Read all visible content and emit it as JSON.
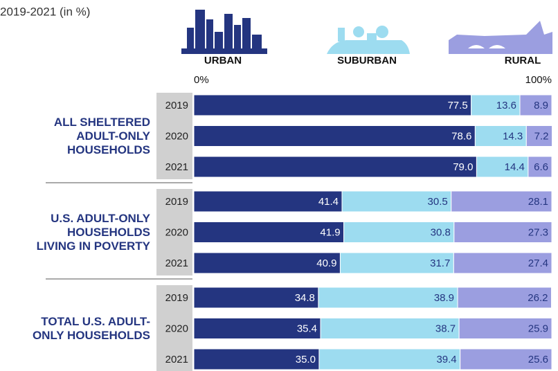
{
  "chart_data": {
    "type": "stacked-bar",
    "title": "2019-2021 (in %)",
    "xlim": [
      0,
      100
    ],
    "xticks": [
      {
        "value": 0,
        "label": "0%"
      },
      {
        "value": 100,
        "label": "100%"
      }
    ],
    "groups": [
      {
        "label": "ALL SHELTERED ADULT-ONLY HOUSEHOLDS",
        "categories": [
          "2019",
          "2020",
          "2021"
        ]
      },
      {
        "label": "U.S. ADULT-ONLY HOUSEHOLDS LIVING IN POVERTY",
        "categories": [
          "2019",
          "2020",
          "2021"
        ]
      },
      {
        "label": "TOTAL U.S. ADULT-ONLY HOUSEHOLDS",
        "categories": [
          "2019",
          "2020",
          "2021"
        ]
      }
    ],
    "series": [
      {
        "name": "URBAN",
        "color": "#243580",
        "label_color": "#ffffff",
        "values": [
          77.5,
          78.6,
          79.0,
          41.4,
          41.9,
          40.9,
          34.8,
          35.4,
          35.0
        ],
        "value_labels": [
          "77.5",
          "78.6",
          "79.0",
          "41.4",
          "41.9",
          "40.9",
          "34.8",
          "35.4",
          "35.0"
        ]
      },
      {
        "name": "SUBURBAN",
        "color": "#9ddcf0",
        "label_color": "#243580",
        "values": [
          13.6,
          14.3,
          14.4,
          30.5,
          30.8,
          31.7,
          38.9,
          38.7,
          39.4
        ],
        "value_labels": [
          "13.6",
          "14.3",
          "14.4",
          "30.5",
          "30.8",
          "31.7",
          "38.9",
          "38.7",
          "39.4"
        ]
      },
      {
        "name": "RURAL",
        "color": "#9b9ee0",
        "label_color": "#243580",
        "values": [
          8.9,
          7.2,
          6.6,
          28.1,
          27.3,
          27.4,
          26.2,
          25.9,
          25.6
        ],
        "value_labels": [
          "8.9",
          "7.2",
          "6.6",
          "28.1",
          "27.3",
          "27.4",
          "26.2",
          "25.9",
          "25.6"
        ]
      }
    ]
  }
}
